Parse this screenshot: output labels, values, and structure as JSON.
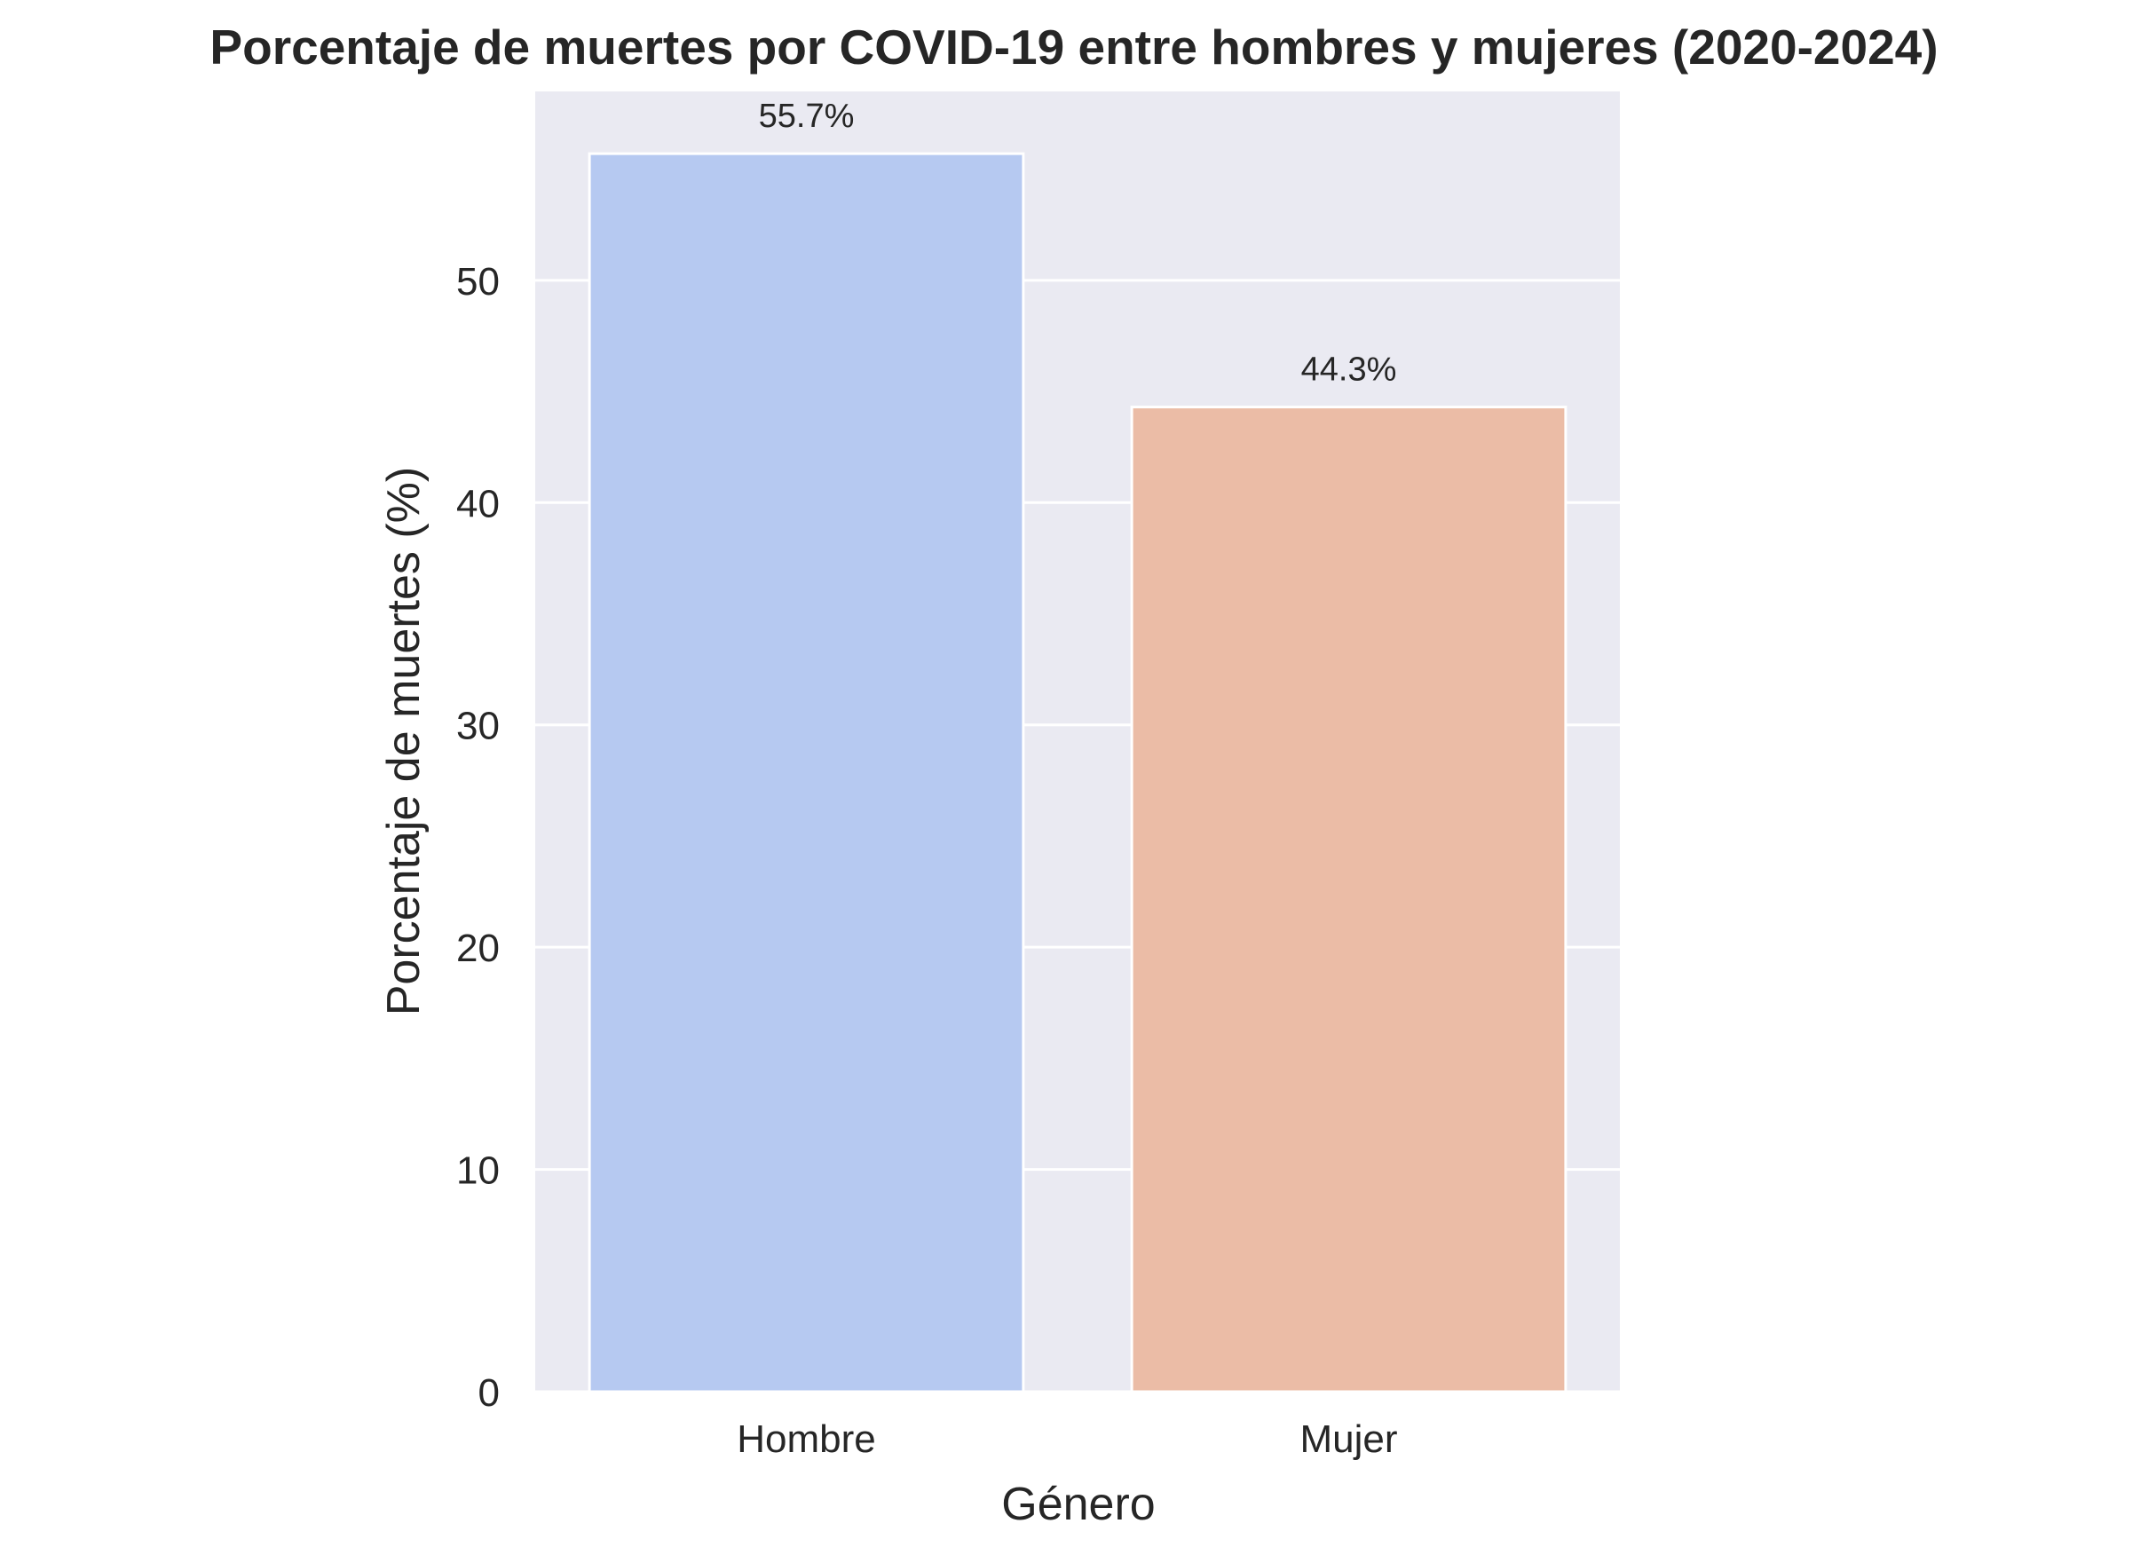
{
  "chart_data": {
    "type": "bar",
    "title": "Porcentaje de muertes por COVID-19 entre hombres y mujeres (2020-2024)",
    "xlabel": "Género",
    "ylabel": "Porcentaje de muertes (%)",
    "categories": [
      "Hombre",
      "Mujer"
    ],
    "values": [
      55.7,
      44.3
    ],
    "data_labels": [
      "55.7%",
      "44.3%"
    ],
    "colors": [
      "#b6c9f1",
      "#ebbca6"
    ],
    "ylim": [
      0,
      58.5
    ],
    "yticks": [
      0,
      10,
      20,
      30,
      40,
      50
    ],
    "grid": true,
    "legend": "none"
  },
  "theme": {
    "plot_background": "#eaeaf2",
    "grid_color": "#ffffff",
    "text_color": "#262626"
  }
}
